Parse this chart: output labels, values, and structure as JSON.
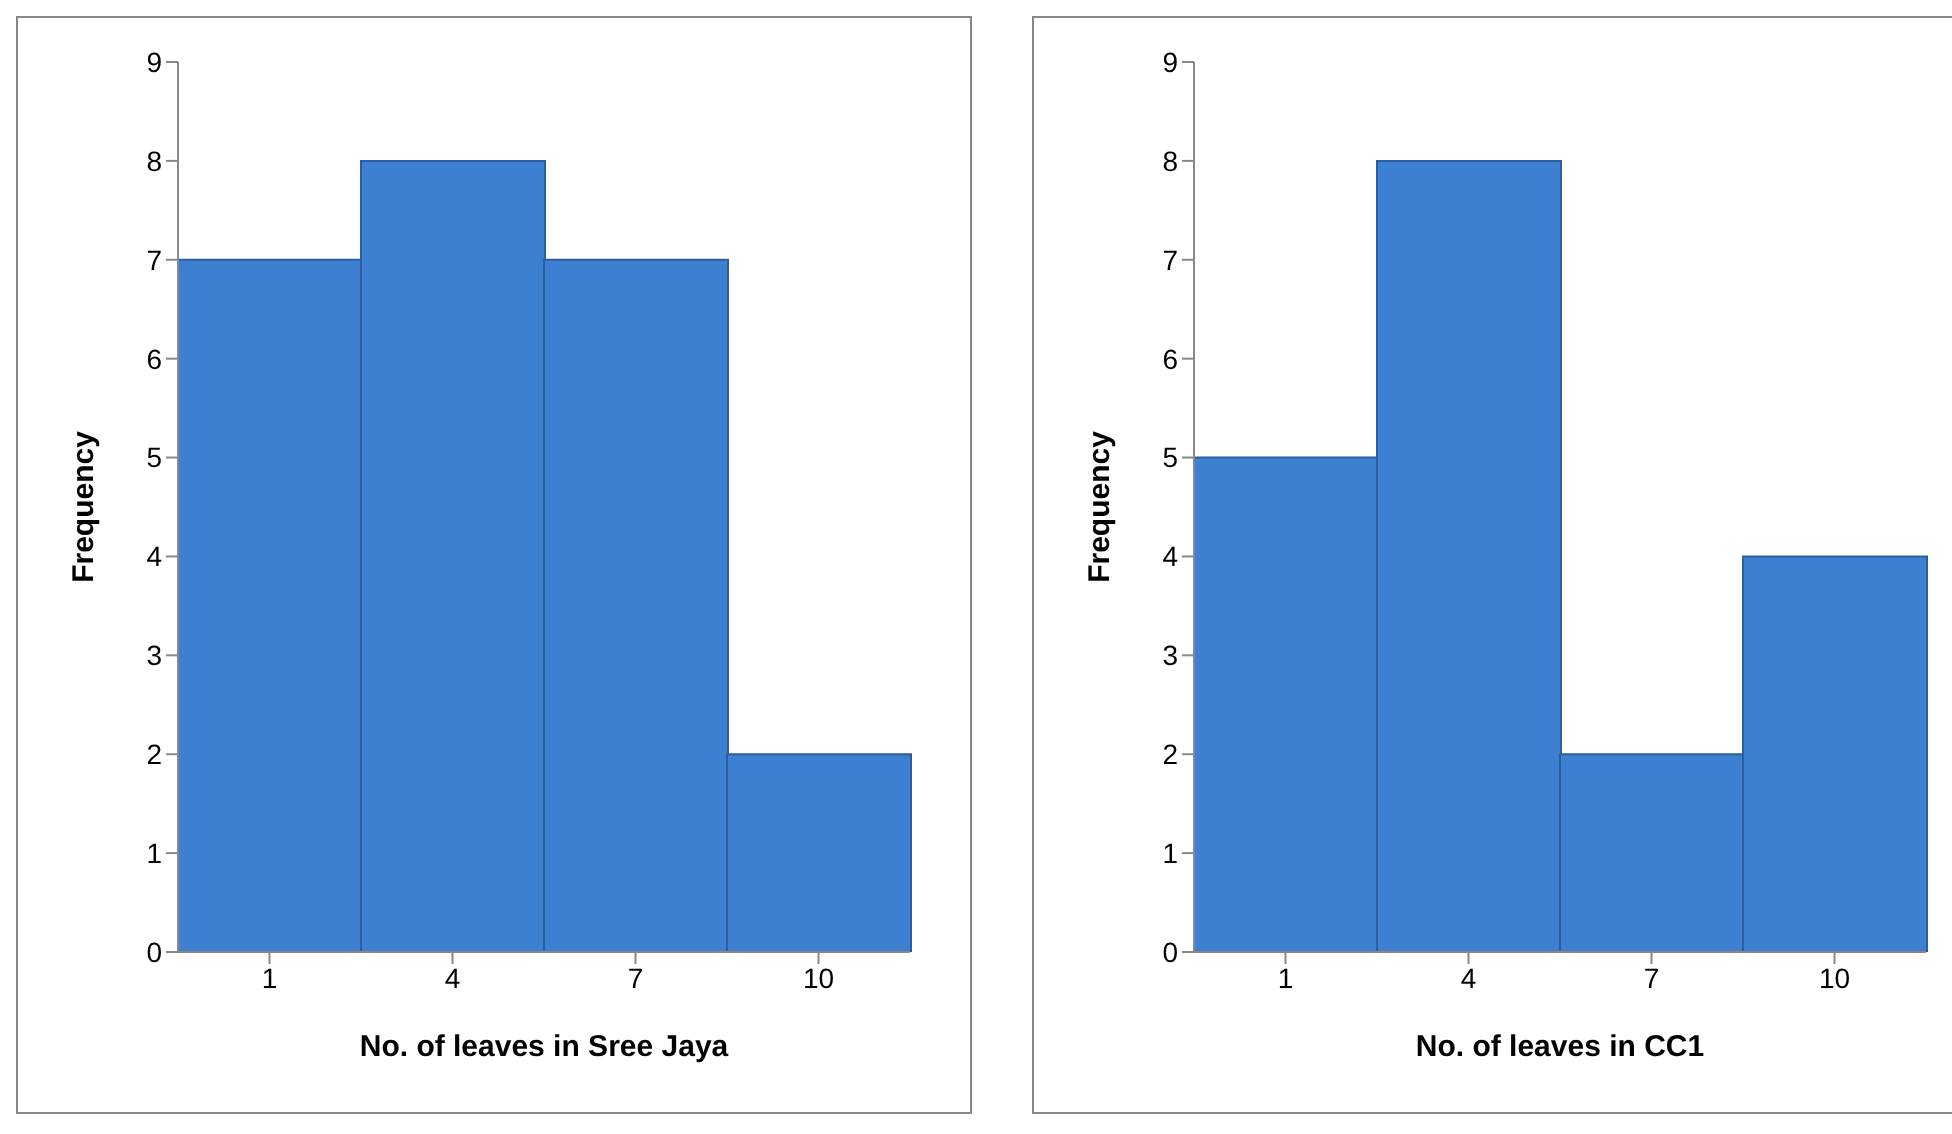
{
  "chart_data": [
    {
      "type": "bar",
      "categories": [
        "1",
        "4",
        "7",
        "10"
      ],
      "values": [
        7,
        8,
        7,
        2
      ],
      "color": "#3d7fd1",
      "xlabel": "No. of leaves in Sree Jaya",
      "ylabel": "Frequency",
      "ylim": [
        0,
        9
      ],
      "yticks": [
        0,
        1,
        2,
        3,
        4,
        5,
        6,
        7,
        8,
        9
      ]
    },
    {
      "type": "bar",
      "categories": [
        "1",
        "4",
        "7",
        "10"
      ],
      "values": [
        5,
        8,
        2,
        4
      ],
      "color": "#3d7fd1",
      "xlabel": "No. of leaves in CC1",
      "ylabel": "Frequency",
      "ylim": [
        0,
        9
      ],
      "yticks": [
        0,
        1,
        2,
        3,
        4,
        5,
        6,
        7,
        8,
        9
      ]
    }
  ]
}
